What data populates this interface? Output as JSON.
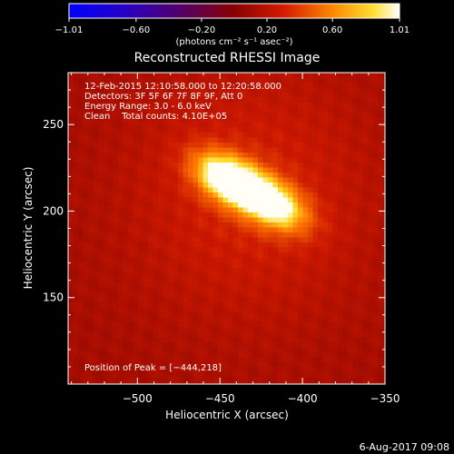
{
  "chart_data": {
    "type": "heatmap",
    "title": "Reconstructed RHESSI Image",
    "xlabel": "Heliocentric X (arcsec)",
    "ylabel": "Heliocentric Y (arcsec)",
    "xlim": [
      -542,
      -350
    ],
    "ylim": [
      100,
      280
    ],
    "x_ticks": [
      -500,
      -450,
      -400,
      -350
    ],
    "y_ticks": [
      150,
      200,
      250
    ],
    "x_tick_labels": [
      "−500",
      "−450",
      "−400",
      "−350"
    ],
    "y_tick_labels": [
      "150",
      "200",
      "250"
    ],
    "colorbar": {
      "range": [
        -1.01,
        1.01
      ],
      "ticks": [
        -1.01,
        -0.6,
        -0.2,
        0.2,
        0.6,
        1.01
      ],
      "tick_labels": [
        "−1.01",
        "−0.60",
        "−0.20",
        "0.20",
        "0.60",
        "1.01"
      ],
      "unit": "(photons cm⁻² s⁻¹ asec⁻²)"
    },
    "annotations": [
      "12-Feb-2015 12:10:58.000 to 12:20:58.000",
      "Detectors: 3F 5F 6F 7F 8F 9F, Att 0",
      "Energy Range: 3.0 - 6.0 keV",
      "Clean    Total counts: 4.10E+05"
    ],
    "peak_label": "Position of Peak = [−444,218]",
    "peak": [
      -444,
      218
    ],
    "sources": [
      {
        "x": -444,
        "y": 218,
        "amp": 1.0
      },
      {
        "x": -418,
        "y": 204,
        "amp": 0.82
      }
    ],
    "footer": "6-Aug-2017 09:08"
  }
}
